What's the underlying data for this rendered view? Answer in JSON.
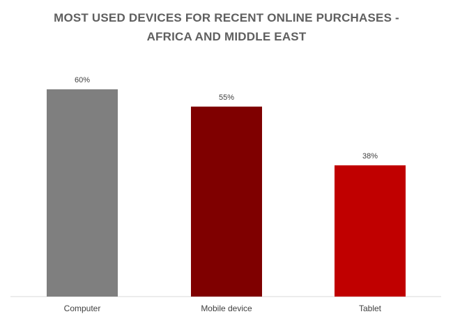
{
  "chart_data": {
    "type": "bar",
    "title_lines": [
      "MOST USED DEVICES FOR RECENT ONLINE PURCHASES -",
      "AFRICA AND MIDDLE EAST"
    ],
    "categories": [
      "Computer",
      "Mobile device",
      "Tablet"
    ],
    "values": [
      60,
      55,
      38
    ],
    "value_labels": [
      "60%",
      "55%",
      "38%"
    ],
    "bar_colors": [
      "#7f7f7f",
      "#7f0000",
      "#c00000"
    ],
    "ylim": [
      0,
      100
    ],
    "grid": false,
    "legend": "none"
  }
}
